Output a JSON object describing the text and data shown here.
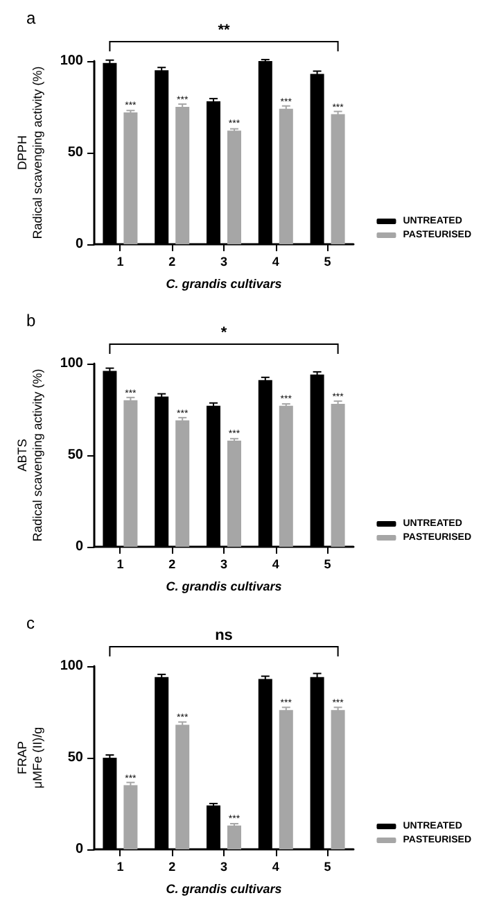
{
  "chart_data": [
    {
      "type": "bar",
      "title": "a",
      "xlabel": "C. grandis cultivars",
      "ylabel": "DPPH\nRadical scavenging activity (%)",
      "categories": [
        "1",
        "2",
        "3",
        "4",
        "5"
      ],
      "series": [
        {
          "name": "UNTREATED",
          "color": "#000000",
          "values": [
            99,
            95,
            78,
            100,
            93
          ],
          "errors": [
            1.5,
            1.5,
            1.5,
            0.8,
            1.5
          ]
        },
        {
          "name": "PASTEURISED",
          "color": "#a6a6a6",
          "values": [
            72,
            75,
            62,
            74,
            71
          ],
          "errors": [
            1,
            1.5,
            1,
            1.5,
            1.5
          ],
          "value_labels": [
            "***",
            "***",
            "***",
            "***",
            "***"
          ]
        }
      ],
      "ylim": [
        0,
        100
      ],
      "yticks": [
        0,
        50,
        100
      ],
      "grid": false,
      "legend": "right",
      "annotations": [
        "**"
      ]
    },
    {
      "type": "bar",
      "title": "b",
      "xlabel": "C. grandis cultivars",
      "ylabel": "ABTS\nRadical scavenging activity (%)",
      "categories": [
        "1",
        "2",
        "3",
        "4",
        "5"
      ],
      "series": [
        {
          "name": "UNTREATED",
          "color": "#000000",
          "values": [
            96,
            82,
            77,
            91,
            94
          ],
          "errors": [
            1.5,
            1.5,
            1.5,
            1.5,
            1.5
          ]
        },
        {
          "name": "PASTEURISED",
          "color": "#a6a6a6",
          "values": [
            80,
            69,
            58,
            77,
            78
          ],
          "errors": [
            1.5,
            1.5,
            1,
            1,
            1.5
          ],
          "value_labels": [
            "***",
            "***",
            "***",
            "***",
            "***"
          ]
        }
      ],
      "ylim": [
        0,
        100
      ],
      "yticks": [
        0,
        50,
        100
      ],
      "grid": false,
      "legend": "right",
      "annotations": [
        "*"
      ]
    },
    {
      "type": "bar",
      "title": "c",
      "xlabel": "C. grandis cultivars",
      "ylabel": "FRAP\nμMFe (II)/g",
      "categories": [
        "1",
        "2",
        "3",
        "4",
        "5"
      ],
      "series": [
        {
          "name": "UNTREATED",
          "color": "#000000",
          "values": [
            50,
            94,
            24,
            93,
            94
          ],
          "errors": [
            1.5,
            1.5,
            1,
            1.5,
            2
          ]
        },
        {
          "name": "PASTEURISED",
          "color": "#a6a6a6",
          "values": [
            35,
            68,
            13,
            76,
            76
          ],
          "errors": [
            1.5,
            1.5,
            1,
            1.5,
            1.5
          ],
          "value_labels": [
            "***",
            "***",
            "***",
            "***",
            "***"
          ]
        }
      ],
      "ylim": [
        0,
        100
      ],
      "yticks": [
        0,
        50,
        100
      ],
      "grid": false,
      "legend": "right",
      "annotations": [
        "ns"
      ]
    }
  ]
}
